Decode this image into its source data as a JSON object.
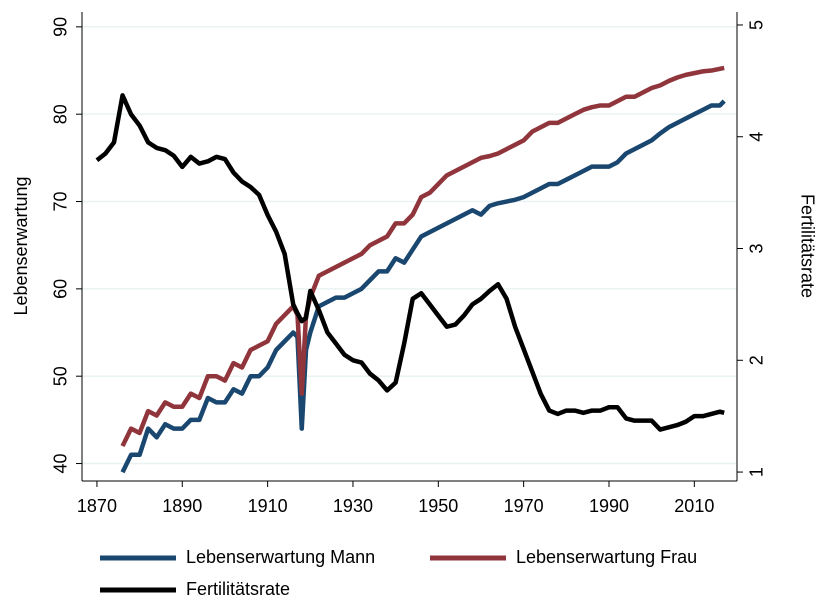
{
  "chart_data": {
    "type": "line",
    "ylabel": "Lebenserwartung",
    "y2label": "Fertilitätsrate",
    "x": [
      1870,
      1872,
      1874,
      1876,
      1878,
      1880,
      1882,
      1884,
      1886,
      1888,
      1890,
      1892,
      1894,
      1896,
      1898,
      1900,
      1902,
      1904,
      1906,
      1908,
      1910,
      1912,
      1914,
      1916,
      1917,
      1918,
      1919,
      1920,
      1922,
      1924,
      1926,
      1928,
      1930,
      1932,
      1934,
      1936,
      1938,
      1940,
      1942,
      1944,
      1946,
      1948,
      1950,
      1952,
      1954,
      1956,
      1958,
      1960,
      1962,
      1964,
      1966,
      1968,
      1970,
      1972,
      1974,
      1976,
      1978,
      1980,
      1982,
      1984,
      1986,
      1988,
      1990,
      1992,
      1994,
      1996,
      1998,
      2000,
      2002,
      2004,
      2006,
      2008,
      2010,
      2012,
      2014,
      2016,
      2017
    ],
    "series": [
      {
        "name": "Lebenserwartung Mann",
        "color": "#1a476f",
        "axis": "y",
        "values": [
          null,
          null,
          null,
          39,
          41,
          41,
          44,
          43,
          44.5,
          44,
          44,
          45,
          45,
          47.5,
          47,
          47,
          48.5,
          48,
          50,
          50,
          51,
          53,
          54,
          55,
          54.5,
          44,
          53,
          55,
          58,
          58.5,
          59,
          59,
          59.5,
          60,
          61,
          62,
          62,
          63.5,
          63,
          64.5,
          66,
          66.5,
          67,
          67.5,
          68,
          68.5,
          69,
          68.5,
          69.5,
          69.8,
          70,
          70.2,
          70.5,
          71,
          71.5,
          72,
          72,
          72.5,
          73,
          73.5,
          74,
          74,
          74,
          74.5,
          75.5,
          76,
          76.5,
          77,
          77.8,
          78.5,
          79,
          79.5,
          80,
          80.5,
          81,
          81,
          81.5
        ]
      },
      {
        "name": "Lebenserwartung Frau",
        "color": "#90353b",
        "axis": "y",
        "values": [
          null,
          null,
          null,
          42,
          44,
          43.5,
          46,
          45.5,
          47,
          46.5,
          46.5,
          48,
          47.5,
          50,
          50,
          49.5,
          51.5,
          51,
          53,
          53.5,
          54,
          56,
          57,
          58,
          57,
          48,
          57,
          59,
          61.5,
          62,
          62.5,
          63,
          63.5,
          64,
          65,
          65.5,
          66,
          67.5,
          67.5,
          68.5,
          70.5,
          71,
          72,
          73,
          73.5,
          74,
          74.5,
          75,
          75.2,
          75.5,
          76,
          76.5,
          77,
          78,
          78.5,
          79,
          79,
          79.5,
          80,
          80.5,
          80.8,
          81,
          81,
          81.5,
          82,
          82,
          82.5,
          83,
          83.3,
          83.8,
          84.2,
          84.5,
          84.7,
          84.9,
          85,
          85.2,
          85.3
        ]
      },
      {
        "name": "Fertilitätsrate",
        "color": "#000000",
        "axis": "y2",
        "values": [
          3.79,
          3.85,
          3.95,
          4.37,
          4.2,
          4.1,
          3.95,
          3.9,
          3.88,
          3.83,
          3.73,
          3.82,
          3.76,
          3.78,
          3.82,
          3.8,
          3.68,
          3.6,
          3.55,
          3.48,
          3.3,
          3.15,
          2.95,
          2.5,
          2.42,
          2.35,
          2.38,
          2.62,
          2.45,
          2.25,
          2.15,
          2.05,
          2.0,
          1.98,
          1.88,
          1.82,
          1.73,
          1.8,
          2.15,
          2.55,
          2.6,
          2.5,
          2.4,
          2.3,
          2.32,
          2.4,
          2.5,
          2.55,
          2.62,
          2.68,
          2.55,
          2.3,
          2.1,
          1.9,
          1.7,
          1.55,
          1.52,
          1.55,
          1.55,
          1.53,
          1.55,
          1.55,
          1.58,
          1.58,
          1.48,
          1.46,
          1.46,
          1.46,
          1.38,
          1.4,
          1.42,
          1.45,
          1.5,
          1.5,
          1.52,
          1.54,
          1.53
        ]
      }
    ],
    "xlim": [
      1866.5,
      2020
    ],
    "xticks": [
      1870,
      1890,
      1910,
      1930,
      1950,
      1970,
      1990,
      2010
    ],
    "ylim": [
      38,
      91.7
    ],
    "yticks": [
      40,
      50,
      60,
      70,
      80,
      90
    ],
    "y2lim": [
      0.92,
      5.116
    ],
    "y2ticks": [
      1,
      2,
      3,
      4,
      5
    ],
    "grid": true,
    "legend": "bottom"
  }
}
